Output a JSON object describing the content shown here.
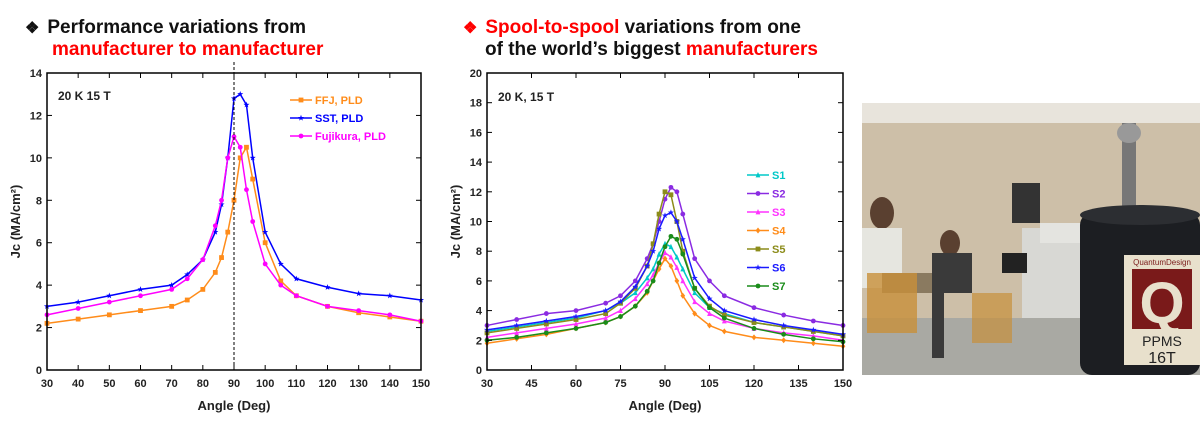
{
  "headings": {
    "left": {
      "bullet": "❖",
      "line1": "Performance variations from",
      "line2": "manufacturer to manufacturer"
    },
    "right": {
      "bullet": "❖",
      "red1": "Spool-to-spool",
      "line1": " variations from one",
      "line2a": "of the world’s biggest ",
      "red2": "manufacturers"
    }
  },
  "colors": {
    "accent": "#ff0000"
  },
  "photo": {
    "logo_top": "QuantumDesign",
    "logo_letter": "Q",
    "logo_bottom1": "PPMS",
    "logo_bottom2": "16T"
  },
  "chart_data": [
    {
      "type": "line",
      "annotation": "20 K 15 T",
      "xlabel": "Angle (Deg)",
      "ylabel": "Jc (MA/cm²)",
      "xlim": [
        30,
        150
      ],
      "ylim": [
        0,
        14
      ],
      "xticks": [
        30,
        40,
        50,
        60,
        70,
        80,
        90,
        100,
        110,
        120,
        130,
        140,
        150
      ],
      "yticks": [
        0,
        2,
        4,
        6,
        8,
        10,
        12,
        14
      ],
      "reference_line_x": 90,
      "legend": "top-right",
      "x": [
        30,
        40,
        50,
        60,
        70,
        75,
        80,
        84,
        86,
        88,
        90,
        92,
        94,
        96,
        100,
        105,
        110,
        120,
        130,
        140,
        150
      ],
      "series": [
        {
          "name": "FFJ, PLD",
          "color": "#ff8c1a",
          "marker": "square",
          "values": [
            2.2,
            2.4,
            2.6,
            2.8,
            3.0,
            3.3,
            3.8,
            4.6,
            5.3,
            6.5,
            8.0,
            10.0,
            10.5,
            9.0,
            6.0,
            4.2,
            3.5,
            3.0,
            2.7,
            2.5,
            2.3
          ]
        },
        {
          "name": "SST, PLD",
          "color": "#0000ff",
          "marker": "star",
          "values": [
            3.0,
            3.2,
            3.5,
            3.8,
            4.0,
            4.5,
            5.2,
            6.5,
            7.8,
            10.0,
            12.8,
            13.0,
            12.5,
            10.0,
            6.5,
            5.0,
            4.3,
            3.9,
            3.6,
            3.5,
            3.3
          ]
        },
        {
          "name": "Fujikura, PLD",
          "color": "#ff00ff",
          "marker": "circle",
          "values": [
            2.6,
            2.9,
            3.2,
            3.5,
            3.8,
            4.3,
            5.2,
            6.8,
            8.0,
            10.0,
            11.0,
            10.5,
            8.5,
            7.0,
            5.0,
            4.0,
            3.5,
            3.0,
            2.8,
            2.6,
            2.3
          ]
        }
      ]
    },
    {
      "type": "line",
      "annotation": "20 K, 15 T",
      "xlabel": "Angle (Deg)",
      "ylabel": "Jc (MA/cm²)",
      "xlim": [
        30,
        150
      ],
      "ylim": [
        0,
        20
      ],
      "xticks": [
        30,
        45,
        60,
        75,
        90,
        105,
        120,
        135,
        150
      ],
      "yticks": [
        0,
        2,
        4,
        6,
        8,
        10,
        12,
        14,
        16,
        18,
        20
      ],
      "legend": "right",
      "x": [
        30,
        40,
        50,
        60,
        70,
        75,
        80,
        84,
        86,
        88,
        90,
        92,
        94,
        96,
        100,
        105,
        110,
        120,
        130,
        140,
        150
      ],
      "series": [
        {
          "name": "S1",
          "color": "#00c8c8",
          "marker": "triangle",
          "values": [
            2.6,
            2.9,
            3.2,
            3.5,
            4.0,
            4.5,
            5.2,
            6.2,
            6.8,
            7.8,
            8.5,
            8.3,
            7.6,
            6.8,
            5.2,
            4.2,
            3.8,
            3.2,
            2.9,
            2.6,
            2.3
          ]
        },
        {
          "name": "S2",
          "color": "#8a2be2",
          "marker": "circle",
          "values": [
            3.0,
            3.4,
            3.8,
            4.0,
            4.5,
            5.0,
            6.0,
            7.5,
            8.5,
            10.0,
            11.5,
            12.3,
            12.0,
            10.5,
            7.5,
            6.0,
            5.0,
            4.2,
            3.7,
            3.3,
            3.0
          ]
        },
        {
          "name": "S3",
          "color": "#ff33ff",
          "marker": "triangle",
          "values": [
            2.2,
            2.5,
            2.8,
            3.1,
            3.5,
            4.0,
            4.8,
            5.8,
            6.4,
            7.2,
            7.9,
            7.6,
            6.9,
            6.0,
            4.6,
            3.8,
            3.3,
            2.8,
            2.5,
            2.3,
            2.0
          ]
        },
        {
          "name": "S4",
          "color": "#ff8c1a",
          "marker": "diamond",
          "values": [
            1.8,
            2.1,
            2.4,
            2.8,
            3.2,
            3.6,
            4.3,
            5.2,
            6.0,
            6.8,
            7.5,
            7.0,
            6.0,
            5.0,
            3.8,
            3.0,
            2.6,
            2.2,
            2.0,
            1.8,
            1.6
          ]
        },
        {
          "name": "S5",
          "color": "#8c8c1a",
          "marker": "square",
          "values": [
            2.5,
            2.8,
            3.1,
            3.4,
            3.8,
            4.5,
            5.5,
            7.0,
            8.5,
            10.5,
            12.0,
            11.8,
            10.0,
            8.0,
            5.5,
            4.3,
            3.7,
            3.2,
            2.9,
            2.6,
            2.3
          ]
        },
        {
          "name": "S6",
          "color": "#1a1aff",
          "marker": "star",
          "values": [
            2.7,
            3.0,
            3.3,
            3.6,
            4.0,
            4.6,
            5.6,
            7.0,
            8.0,
            9.5,
            10.4,
            10.6,
            10.0,
            8.8,
            6.2,
            4.8,
            4.0,
            3.4,
            3.0,
            2.7,
            2.4
          ]
        },
        {
          "name": "S7",
          "color": "#1a8c1a",
          "marker": "circle",
          "values": [
            2.0,
            2.2,
            2.5,
            2.8,
            3.2,
            3.6,
            4.3,
            5.3,
            6.0,
            7.2,
            8.3,
            9.0,
            8.8,
            7.8,
            5.5,
            4.2,
            3.5,
            2.8,
            2.4,
            2.1,
            1.9
          ]
        }
      ]
    }
  ]
}
